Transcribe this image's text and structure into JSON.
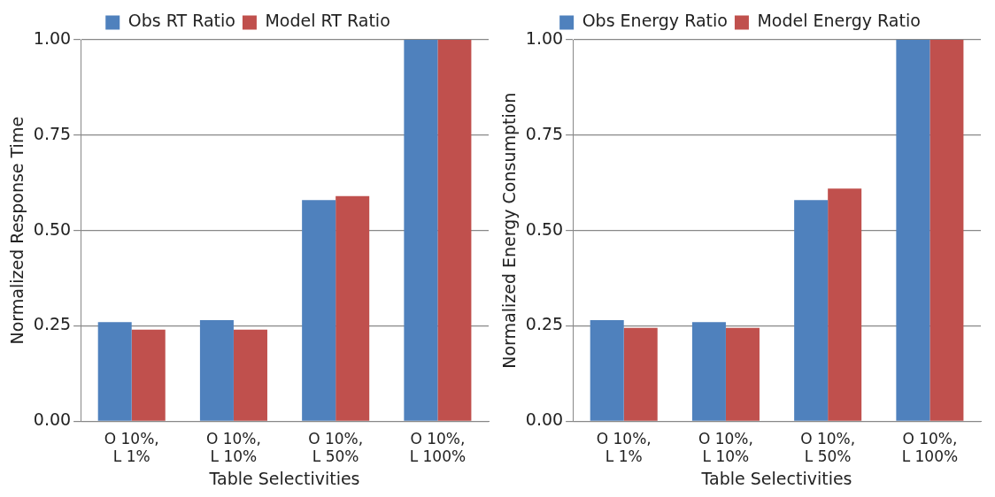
{
  "chart_data": [
    {
      "type": "bar",
      "ylabel": "Normalized Response Time",
      "xlabel": "Table Selectivities",
      "categories": [
        "O 10%,\nL 1%",
        "O 10%,\nL 10%",
        "O 10%,\nL 50%",
        "O 10%,\nL 100%"
      ],
      "series": [
        {
          "name": "Obs RT Ratio",
          "color": "#4f81bd",
          "values": [
            0.26,
            0.265,
            0.58,
            1.0
          ]
        },
        {
          "name": "Model RT Ratio",
          "color": "#c0504d",
          "values": [
            0.24,
            0.24,
            0.59,
            1.0
          ]
        }
      ],
      "ylim": [
        0,
        1
      ],
      "yticks": [
        {
          "value": 0,
          "label": "0.00"
        },
        {
          "value": 0.25,
          "label": "0.25"
        },
        {
          "value": 0.5,
          "label": "0.50"
        },
        {
          "value": 0.75,
          "label": "0.75"
        },
        {
          "value": 1,
          "label": "1.00"
        }
      ],
      "grid": "y",
      "legend": "top"
    },
    {
      "type": "bar",
      "ylabel": "Normalized Energy Consumption",
      "xlabel": "Table Selectivities",
      "categories": [
        "O 10%,\nL 1%",
        "O 10%,\nL 10%",
        "O 10%,\nL 50%",
        "O 10%,\nL 100%"
      ],
      "series": [
        {
          "name": "Obs Energy Ratio",
          "color": "#4f81bd",
          "values": [
            0.265,
            0.26,
            0.58,
            1.0
          ]
        },
        {
          "name": "Model Energy Ratio",
          "color": "#c0504d",
          "values": [
            0.245,
            0.245,
            0.61,
            1.0
          ]
        }
      ],
      "ylim": [
        0,
        1
      ],
      "yticks": [
        {
          "value": 0,
          "label": "0.00"
        },
        {
          "value": 0.25,
          "label": "0.25"
        },
        {
          "value": 0.5,
          "label": "0.50"
        },
        {
          "value": 0.75,
          "label": "0.75"
        },
        {
          "value": 1,
          "label": "1.00"
        }
      ],
      "grid": "y",
      "legend": "top"
    }
  ]
}
